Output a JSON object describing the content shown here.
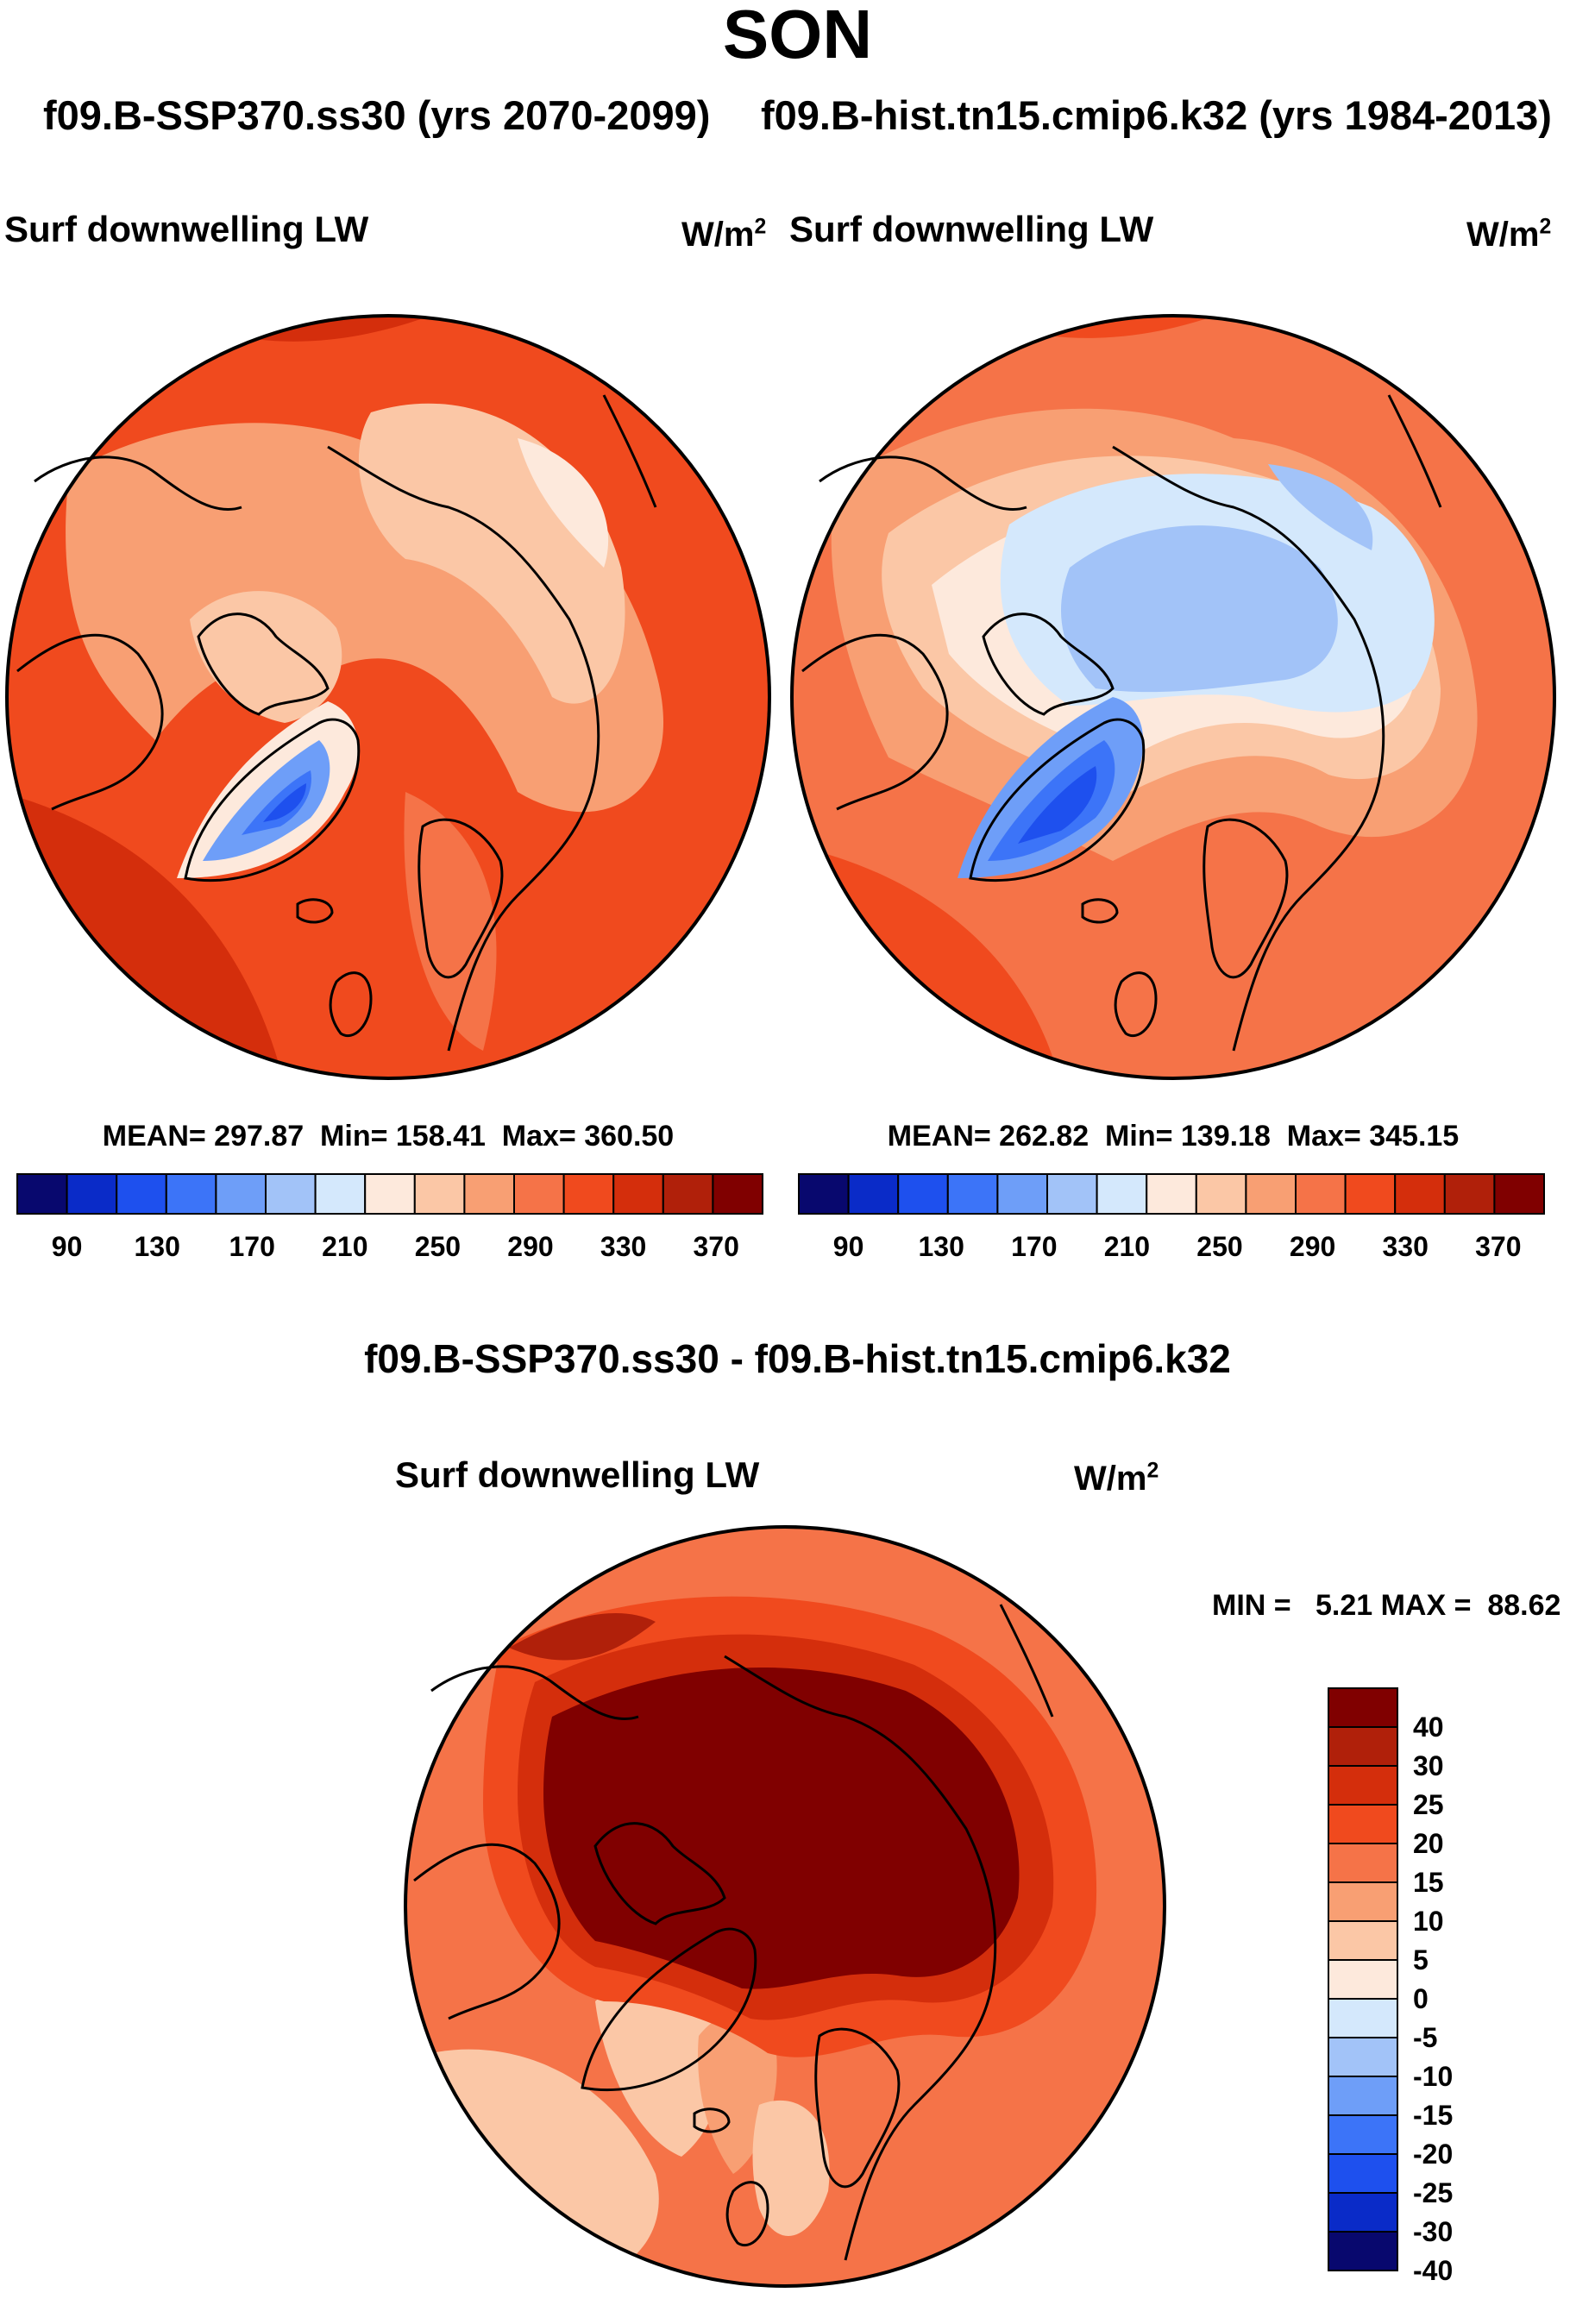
{
  "header": {
    "season": "SON",
    "subtitle_left": "f09.B-SSP370.ss30 (yrs 2070-2099)",
    "subtitle_right": "f09.B-hist.tn15.cmip6.k32 (yrs 1984-2013)"
  },
  "colors": {
    "map_levels": [
      "#08086e",
      "#0a2bc8",
      "#1e50ee",
      "#3c74f8",
      "#6e9ef8",
      "#a2c3f8",
      "#d4e8fc",
      "#fde9dc",
      "#fbc7a6",
      "#f89f73",
      "#f57348",
      "#f04a1e",
      "#d42e0c",
      "#b0200a",
      "#800000"
    ],
    "coast": "#000000",
    "ring": "#000000"
  },
  "maps": {
    "left": {
      "variable": "Surf downwelling LW",
      "units": "W/m",
      "units_exp": "2",
      "stats": "MEAN= 297.87  Min= 158.41  Max= 360.50",
      "colorbar_labels": [
        "90",
        "130",
        "170",
        "210",
        "250",
        "290",
        "330",
        "370"
      ]
    },
    "right": {
      "variable": "Surf downwelling LW",
      "units": "W/m",
      "units_exp": "2",
      "stats": "MEAN= 262.82  Min= 139.18  Max= 345.15",
      "colorbar_labels": [
        "90",
        "130",
        "170",
        "210",
        "250",
        "290",
        "330",
        "370"
      ]
    },
    "diff": {
      "title": "f09.B-SSP370.ss30 - f09.B-hist.tn15.cmip6.k32",
      "variable": "Surf downwelling LW",
      "units": "W/m",
      "units_exp": "2",
      "stats": "MIN =   5.21 MAX =  88.62",
      "colorbar_labels": [
        "40",
        "30",
        "25",
        "20",
        "15",
        "10",
        "5",
        "0",
        "-5",
        "-10",
        "-15",
        "-20",
        "-25",
        "-30",
        "-40"
      ]
    }
  }
}
